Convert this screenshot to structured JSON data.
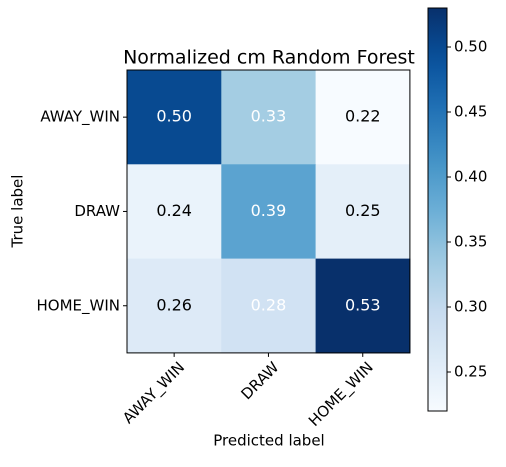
{
  "chart_data": {
    "type": "heatmap",
    "title": "Normalized cm Random Forest",
    "x_label": "Predicted label",
    "y_label": "True label",
    "x_categories": [
      "AWAY_WIN",
      "DRAW",
      "HOME_WIN"
    ],
    "y_categories": [
      "AWAY_WIN",
      "DRAW",
      "HOME_WIN"
    ],
    "values": [
      [
        0.5,
        0.33,
        0.22
      ],
      [
        0.24,
        0.39,
        0.25
      ],
      [
        0.26,
        0.28,
        0.53
      ]
    ],
    "value_labels": [
      [
        "0.50",
        "0.33",
        "0.22"
      ],
      [
        "0.24",
        "0.39",
        "0.25"
      ],
      [
        "0.26",
        "0.28",
        "0.53"
      ]
    ],
    "colormap": "Blues",
    "clim": [
      0.22,
      0.53
    ],
    "cticks": [
      0.25,
      {
        "value": 0.3,
        "label": "0.30"
      },
      0.35,
      {
        "value": 0.4,
        "label": "0.40"
      },
      0.45,
      {
        "value": 0.5,
        "label": "0.50"
      }
    ]
  }
}
